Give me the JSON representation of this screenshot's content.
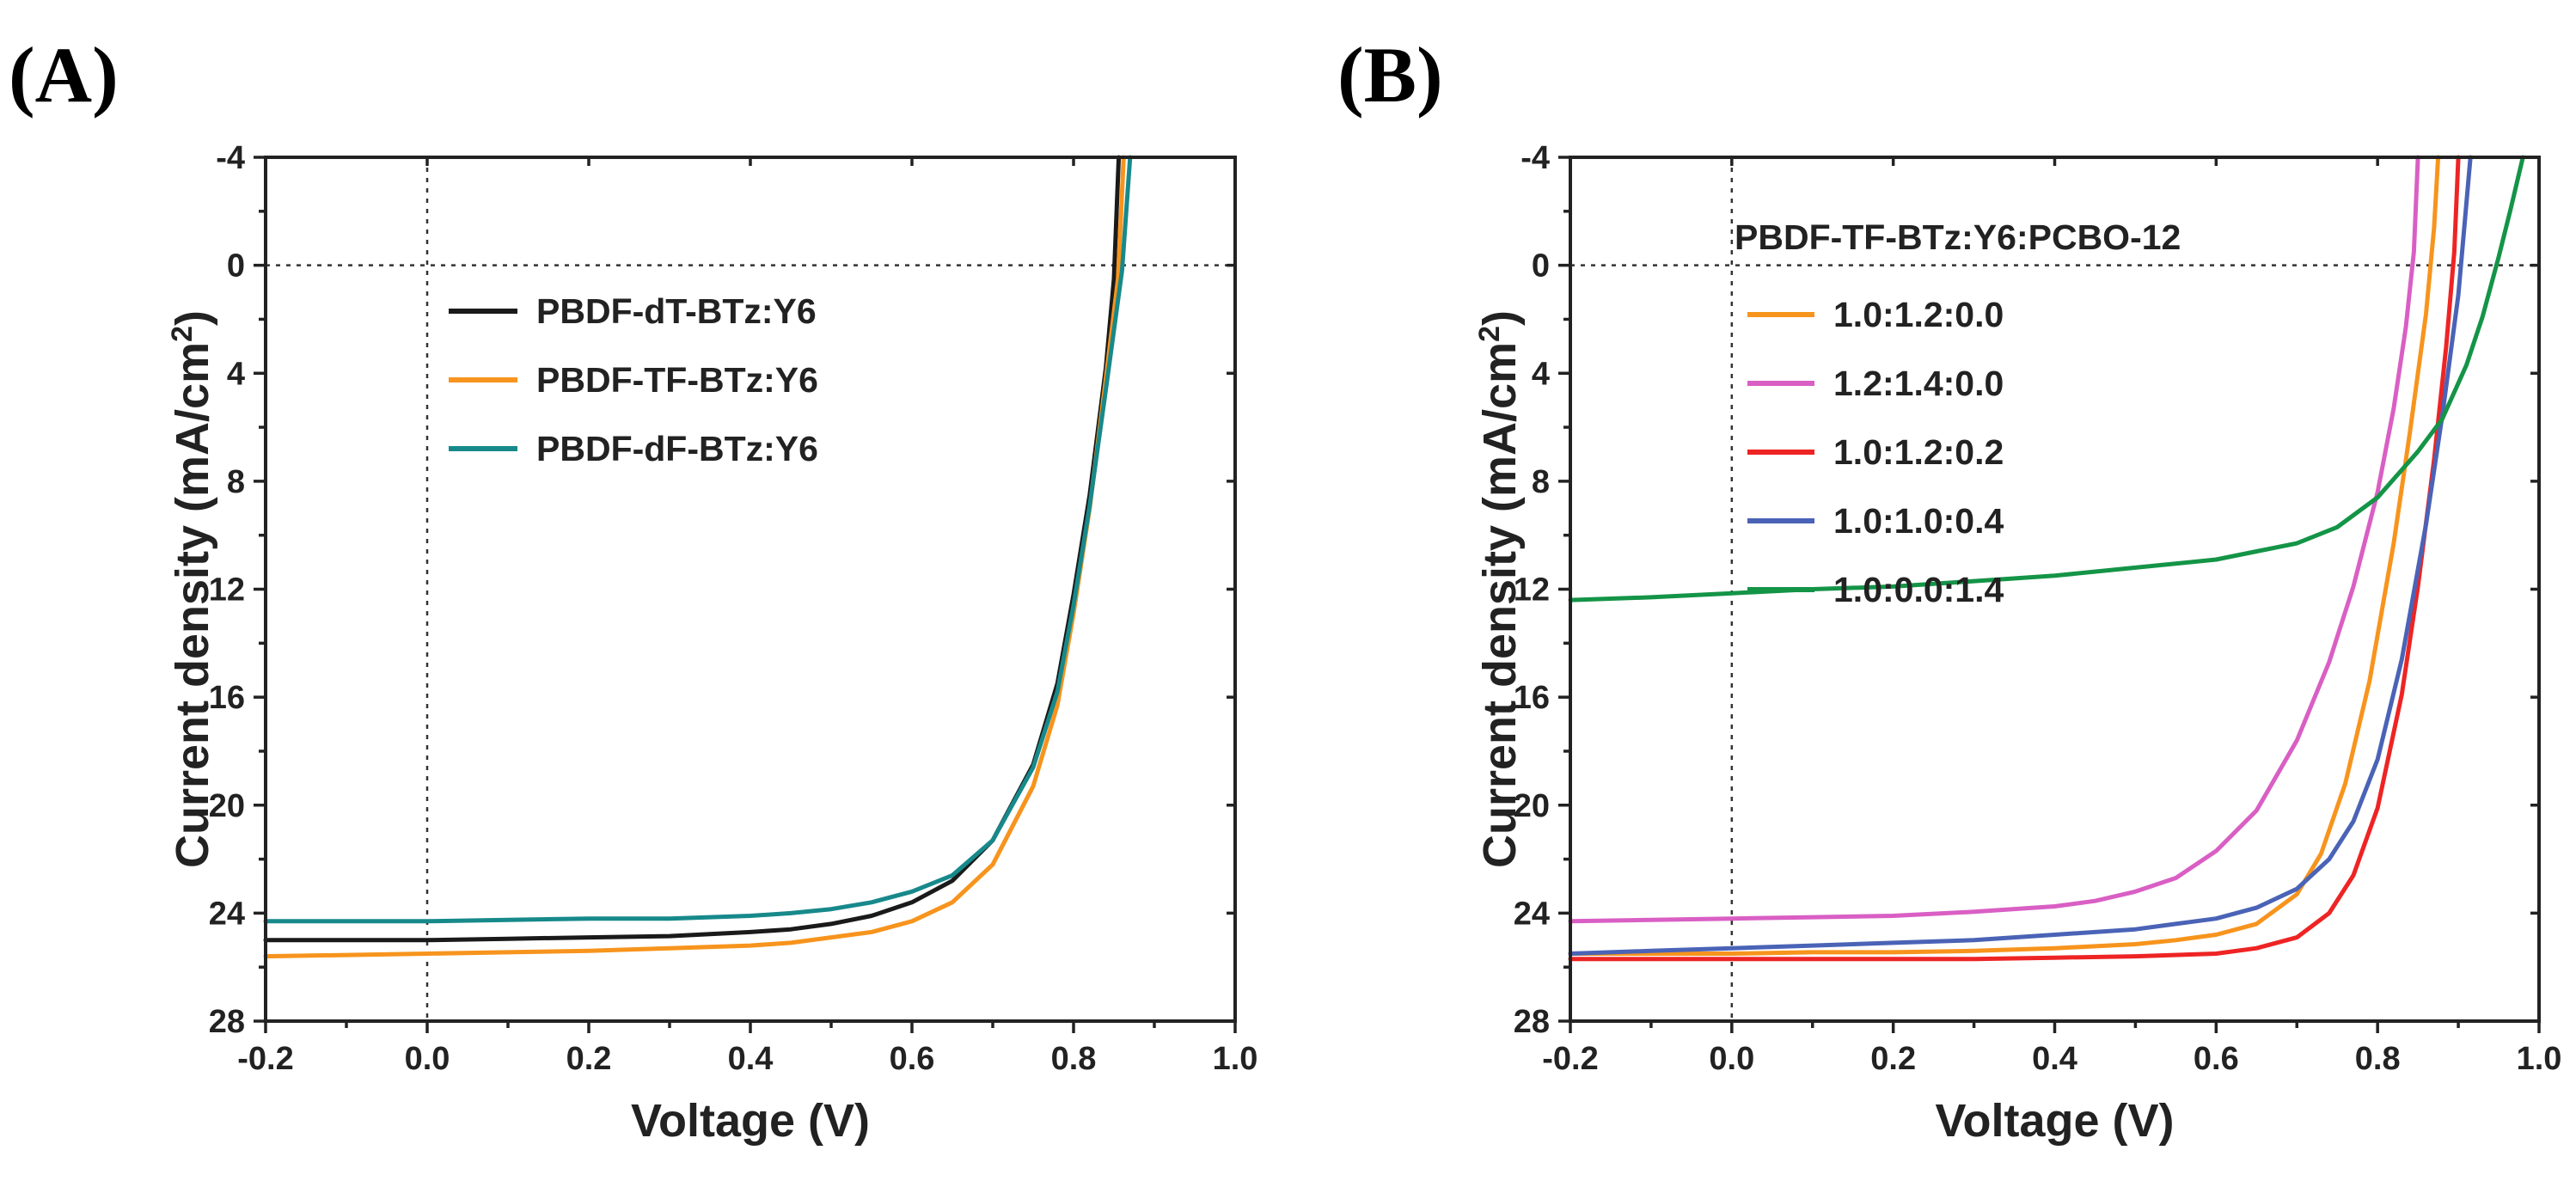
{
  "figure": {
    "panel_a_label": "(A)",
    "panel_b_label": "(B)"
  },
  "chart_data": [
    {
      "panel": "A",
      "type": "line",
      "xlabel": "Voltage (V)",
      "ylabel": "Current density (mA/cm",
      "ylabel_sup": "2",
      "ylabel_close": ")",
      "xlim": [
        -0.2,
        1.0
      ],
      "ylim": [
        -4,
        28
      ],
      "y_inverted": true,
      "x_ticks": [
        "-0.2",
        "0.0",
        "0.2",
        "0.4",
        "0.6",
        "0.8",
        "1.0"
      ],
      "x_tick_values": [
        -0.2,
        0.0,
        0.2,
        0.4,
        0.6,
        0.8,
        1.0
      ],
      "y_ticks": [
        "-4",
        "0",
        "4",
        "8",
        "12",
        "16",
        "20",
        "24",
        "28"
      ],
      "y_tick_values": [
        -4,
        0,
        4,
        8,
        12,
        16,
        20,
        24,
        28
      ],
      "ref_x": 0.0,
      "ref_y": 0,
      "legend_title": "",
      "series": [
        {
          "name": "PBDF-dT-BTz:Y6",
          "color": "#1a1a1a",
          "x": [
            -0.2,
            -0.1,
            0.0,
            0.1,
            0.2,
            0.3,
            0.4,
            0.45,
            0.5,
            0.55,
            0.6,
            0.65,
            0.7,
            0.75,
            0.78,
            0.8,
            0.82,
            0.84,
            0.85,
            0.856
          ],
          "y": [
            25.0,
            25.0,
            25.0,
            24.95,
            24.9,
            24.85,
            24.7,
            24.6,
            24.4,
            24.1,
            23.6,
            22.8,
            21.3,
            18.5,
            15.5,
            12.2,
            8.5,
            3.8,
            0.5,
            -4.0
          ]
        },
        {
          "name": "PBDF-TF-BTz:Y6",
          "color": "#f7941d",
          "x": [
            -0.2,
            -0.1,
            0.0,
            0.1,
            0.2,
            0.3,
            0.4,
            0.45,
            0.5,
            0.55,
            0.6,
            0.65,
            0.7,
            0.75,
            0.78,
            0.8,
            0.82,
            0.84,
            0.855,
            0.862
          ],
          "y": [
            25.6,
            25.55,
            25.5,
            25.45,
            25.4,
            25.3,
            25.2,
            25.1,
            24.9,
            24.7,
            24.3,
            23.6,
            22.2,
            19.3,
            16.3,
            12.9,
            9.0,
            4.2,
            0.5,
            -4.0
          ]
        },
        {
          "name": "PBDF-dF-BTz:Y6",
          "color": "#17898b",
          "x": [
            -0.2,
            -0.1,
            0.0,
            0.1,
            0.2,
            0.3,
            0.4,
            0.45,
            0.5,
            0.55,
            0.6,
            0.65,
            0.7,
            0.75,
            0.78,
            0.8,
            0.82,
            0.84,
            0.86,
            0.87
          ],
          "y": [
            24.3,
            24.3,
            24.3,
            24.25,
            24.2,
            24.2,
            24.1,
            24.0,
            23.85,
            23.6,
            23.2,
            22.6,
            21.3,
            18.6,
            15.8,
            12.6,
            8.9,
            4.6,
            0.2,
            -4.0
          ]
        }
      ]
    },
    {
      "panel": "B",
      "type": "line",
      "xlabel": "Voltage (V)",
      "ylabel": "Current density (mA/cm",
      "ylabel_sup": "2",
      "ylabel_close": ")",
      "xlim": [
        -0.2,
        1.0
      ],
      "ylim": [
        -4,
        28
      ],
      "y_inverted": true,
      "x_ticks": [
        "-0.2",
        "0.0",
        "0.2",
        "0.4",
        "0.6",
        "0.8",
        "1.0"
      ],
      "x_tick_values": [
        -0.2,
        0.0,
        0.2,
        0.4,
        0.6,
        0.8,
        1.0
      ],
      "y_ticks": [
        "-4",
        "0",
        "4",
        "8",
        "12",
        "16",
        "20",
        "24",
        "28"
      ],
      "y_tick_values": [
        -4,
        0,
        4,
        8,
        12,
        16,
        20,
        24,
        28
      ],
      "ref_x": 0.0,
      "ref_y": 0,
      "legend_title": "PBDF-TF-BTz:Y6:PCBO-12",
      "series": [
        {
          "name": "1.0:1.2:0.0",
          "color": "#f7941d",
          "x": [
            -0.2,
            -0.1,
            0.0,
            0.1,
            0.2,
            0.3,
            0.4,
            0.5,
            0.55,
            0.6,
            0.65,
            0.7,
            0.73,
            0.76,
            0.79,
            0.82,
            0.84,
            0.86,
            0.87,
            0.875
          ],
          "y": [
            25.5,
            25.5,
            25.5,
            25.45,
            25.45,
            25.4,
            25.3,
            25.15,
            25.0,
            24.8,
            24.4,
            23.3,
            21.8,
            19.2,
            15.4,
            10.3,
            6.2,
            1.8,
            -1.4,
            -4.0
          ]
        },
        {
          "name": "1.2:1.4:0.0",
          "color": "#d95fc4",
          "x": [
            -0.2,
            -0.1,
            0.0,
            0.1,
            0.2,
            0.3,
            0.4,
            0.45,
            0.5,
            0.55,
            0.6,
            0.65,
            0.7,
            0.74,
            0.77,
            0.8,
            0.82,
            0.835,
            0.845,
            0.85
          ],
          "y": [
            24.3,
            24.25,
            24.2,
            24.15,
            24.1,
            23.95,
            23.75,
            23.55,
            23.2,
            22.7,
            21.7,
            20.2,
            17.6,
            14.7,
            11.9,
            8.4,
            5.3,
            2.3,
            -0.5,
            -4.0
          ]
        },
        {
          "name": "1.0:1.2:0.2",
          "color": "#ee2424",
          "x": [
            -0.2,
            -0.1,
            0.0,
            0.1,
            0.2,
            0.3,
            0.4,
            0.5,
            0.6,
            0.65,
            0.7,
            0.74,
            0.77,
            0.8,
            0.83,
            0.85,
            0.87,
            0.885,
            0.895,
            0.9
          ],
          "y": [
            25.7,
            25.7,
            25.7,
            25.7,
            25.7,
            25.7,
            25.65,
            25.6,
            25.5,
            25.3,
            24.9,
            24.0,
            22.6,
            20.1,
            15.9,
            11.9,
            7.2,
            3.0,
            -0.5,
            -4.0
          ]
        },
        {
          "name": "1.0:1.0:0.4",
          "color": "#4a63b6",
          "x": [
            -0.2,
            -0.1,
            0.0,
            0.1,
            0.2,
            0.3,
            0.4,
            0.5,
            0.55,
            0.6,
            0.65,
            0.7,
            0.74,
            0.77,
            0.8,
            0.83,
            0.86,
            0.88,
            0.9,
            0.915
          ],
          "y": [
            25.5,
            25.4,
            25.3,
            25.2,
            25.1,
            25.0,
            24.8,
            24.6,
            24.4,
            24.2,
            23.8,
            23.1,
            22.0,
            20.6,
            18.3,
            14.6,
            9.6,
            5.6,
            1.1,
            -4.0
          ]
        },
        {
          "name": "1.0:0.0:1.4",
          "color": "#149447",
          "x": [
            -0.2,
            -0.1,
            0.0,
            0.1,
            0.2,
            0.3,
            0.4,
            0.5,
            0.6,
            0.65,
            0.7,
            0.75,
            0.8,
            0.85,
            0.88,
            0.91,
            0.93,
            0.95,
            0.965,
            0.98
          ],
          "y": [
            12.4,
            12.3,
            12.15,
            12.0,
            11.9,
            11.7,
            11.5,
            11.2,
            10.9,
            10.6,
            10.3,
            9.7,
            8.6,
            6.9,
            5.7,
            3.7,
            1.9,
            -0.3,
            -2.1,
            -4.0
          ]
        }
      ]
    }
  ]
}
